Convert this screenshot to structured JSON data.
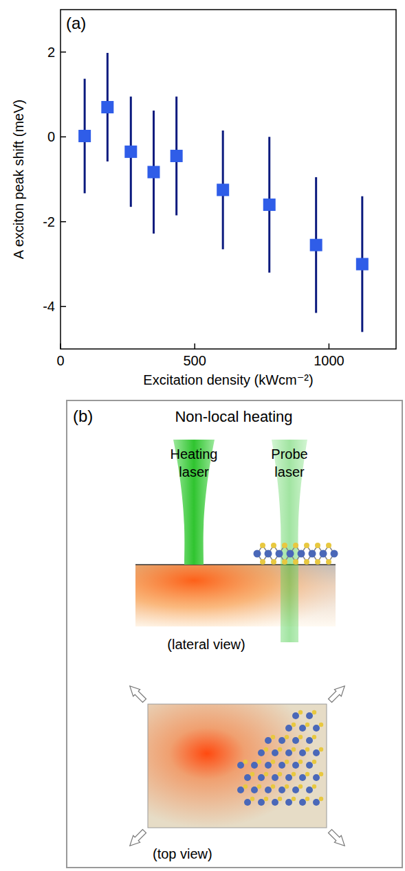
{
  "chart_data": {
    "type": "scatter",
    "title": "(a)",
    "x_label": "Excitation density (kWcm⁻²)",
    "y_label": "A exciton peak shift (meV)",
    "x": [
      90,
      175,
      262,
      347,
      432,
      605,
      778,
      952,
      1124
    ],
    "values": [
      0.02,
      0.7,
      -0.35,
      -0.83,
      -0.45,
      -1.25,
      -1.6,
      -2.55,
      -3
    ],
    "errors": [
      1.35,
      1.28,
      1.3,
      1.45,
      1.4,
      1.4,
      1.6,
      1.6,
      1.6
    ],
    "xlim": [
      0,
      1250
    ],
    "ylim": [
      -5,
      3
    ],
    "xticks": [
      0,
      500,
      1000
    ],
    "yticks": [
      -4,
      -2,
      0,
      2
    ],
    "color": "#2f5de8",
    "marker": "square",
    "grid": false
  },
  "diagram": {
    "panel_label": "(b)",
    "title": "Non-local heating",
    "heating_laser": "Heating laser",
    "probe_laser": "Probe laser",
    "lateral_view": "(lateral view)",
    "top_view": "(top view)"
  }
}
